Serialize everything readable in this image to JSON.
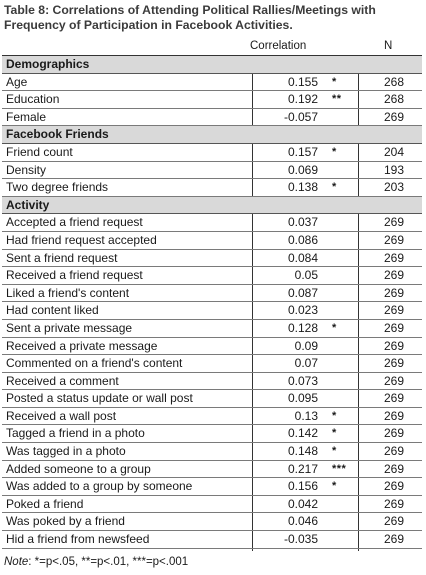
{
  "title": {
    "line1": "Table 8: Correlations of Attending Political Rallies/Meetings with",
    "line2": "Frequency of Participation in Facebook Activities."
  },
  "columns": {
    "correlation": "Correlation",
    "n": "N"
  },
  "rows": [
    {
      "type": "section",
      "label": "Demographics"
    },
    {
      "type": "data",
      "label": "Age",
      "corr": "0.155",
      "sig": "*",
      "n": "268"
    },
    {
      "type": "data",
      "label": "Education",
      "corr": "0.192",
      "sig": "**",
      "n": "268"
    },
    {
      "type": "data",
      "label": "Female",
      "corr": "-0.057",
      "sig": "",
      "n": "269"
    },
    {
      "type": "section",
      "label": "Facebook Friends"
    },
    {
      "type": "data",
      "label": "Friend count",
      "corr": "0.157",
      "sig": "*",
      "n": "204"
    },
    {
      "type": "data",
      "label": "Density",
      "corr": "0.069",
      "sig": "",
      "n": "193"
    },
    {
      "type": "data",
      "label": "Two degree friends",
      "corr": "0.138",
      "sig": "*",
      "n": "203"
    },
    {
      "type": "section",
      "label": "Activity"
    },
    {
      "type": "data",
      "label": "Accepted a friend request",
      "corr": "0.037",
      "sig": "",
      "n": "269"
    },
    {
      "type": "data",
      "label": "Had friend request accepted",
      "corr": "0.086",
      "sig": "",
      "n": "269"
    },
    {
      "type": "data",
      "label": "Sent a friend request",
      "corr": "0.084",
      "sig": "",
      "n": "269"
    },
    {
      "type": "data",
      "label": "Received a friend request",
      "corr": "0.05",
      "sig": "",
      "n": "269"
    },
    {
      "type": "data",
      "label": "Liked a friend's content",
      "corr": "0.087",
      "sig": "",
      "n": "269"
    },
    {
      "type": "data",
      "label": "Had content liked",
      "corr": "0.023",
      "sig": "",
      "n": "269"
    },
    {
      "type": "data",
      "label": "Sent a private message",
      "corr": "0.128",
      "sig": "*",
      "n": "269"
    },
    {
      "type": "data",
      "label": "Received a private message",
      "corr": "0.09",
      "sig": "",
      "n": "269"
    },
    {
      "type": "data",
      "label": "Commented on a friend's content",
      "corr": "0.07",
      "sig": "",
      "n": "269"
    },
    {
      "type": "data",
      "label": "Received  a comment",
      "corr": "0.073",
      "sig": "",
      "n": "269"
    },
    {
      "type": "data",
      "label": "Posted a status update or wall post",
      "corr": "0.095",
      "sig": "",
      "n": "269"
    },
    {
      "type": "data",
      "label": "Received a wall post",
      "corr": "0.13",
      "sig": "*",
      "n": "269"
    },
    {
      "type": "data",
      "label": "Tagged a friend in a photo",
      "corr": "0.142",
      "sig": "*",
      "n": "269"
    },
    {
      "type": "data",
      "label": "Was tagged in a photo",
      "corr": "0.148",
      "sig": "*",
      "n": "269"
    },
    {
      "type": "data",
      "label": "Added someone to a group",
      "corr": "0.217",
      "sig": "***",
      "n": "269"
    },
    {
      "type": "data",
      "label": "Was added to a group by someone",
      "corr": "0.156",
      "sig": "*",
      "n": "269"
    },
    {
      "type": "data",
      "label": "Poked a friend",
      "corr": "0.042",
      "sig": "",
      "n": "269"
    },
    {
      "type": "data",
      "label": "Was poked by a friend",
      "corr": "0.046",
      "sig": "",
      "n": "269"
    },
    {
      "type": "data",
      "label": "Hid a friend from newsfeed",
      "corr": "-0.035",
      "sig": "",
      "n": "269"
    }
  ],
  "note": {
    "label": "Note",
    "text": ": *=p<.05, **=p<.01, ***=p<.001"
  },
  "colors": {
    "section_bg": "#d9d9d9",
    "title": "#3b3b3b"
  }
}
